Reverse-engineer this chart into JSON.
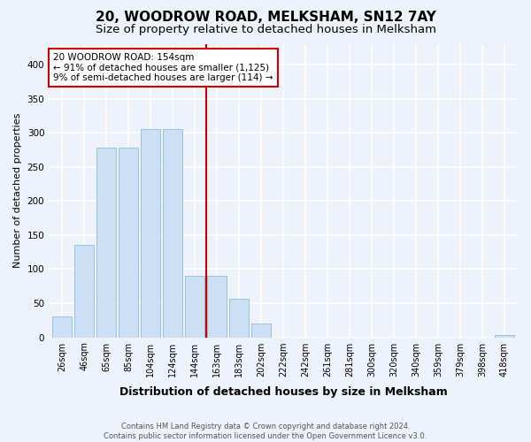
{
  "title": "20, WOODROW ROAD, MELKSHAM, SN12 7AY",
  "subtitle": "Size of property relative to detached houses in Melksham",
  "xlabel": "Distribution of detached houses by size in Melksham",
  "ylabel": "Number of detached properties",
  "footnote1": "Contains HM Land Registry data © Crown copyright and database right 2024.",
  "footnote2": "Contains public sector information licensed under the Open Government Licence v3.0.",
  "bin_labels": [
    "26sqm",
    "46sqm",
    "65sqm",
    "85sqm",
    "104sqm",
    "124sqm",
    "144sqm",
    "163sqm",
    "183sqm",
    "202sqm",
    "222sqm",
    "242sqm",
    "261sqm",
    "281sqm",
    "300sqm",
    "320sqm",
    "340sqm",
    "359sqm",
    "379sqm",
    "398sqm",
    "418sqm"
  ],
  "bar_values": [
    30,
    135,
    278,
    278,
    305,
    305,
    90,
    90,
    57,
    20,
    0,
    0,
    0,
    0,
    0,
    0,
    0,
    0,
    0,
    0,
    3
  ],
  "bar_color": "#cce0f5",
  "bar_edge_color": "#9abfe0",
  "vline_color": "#cc0000",
  "annotation_title": "20 WOODROW ROAD: 154sqm",
  "annotation_line1": "← 91% of detached houses are smaller (1,125)",
  "annotation_line2": "9% of semi-detached houses are larger (114) →",
  "annotation_box_color": "#cc0000",
  "ylim": [
    0,
    430
  ],
  "yticks": [
    0,
    50,
    100,
    150,
    200,
    250,
    300,
    350,
    400
  ],
  "bg_color": "#eef2fb",
  "plot_bg_color": "#eef2fb",
  "grid_color": "#ffffff",
  "title_fontsize": 11,
  "subtitle_fontsize": 9.5,
  "ylabel_fontsize": 8,
  "xlabel_fontsize": 9,
  "tick_fontsize": 7,
  "footnote_fontsize": 6
}
